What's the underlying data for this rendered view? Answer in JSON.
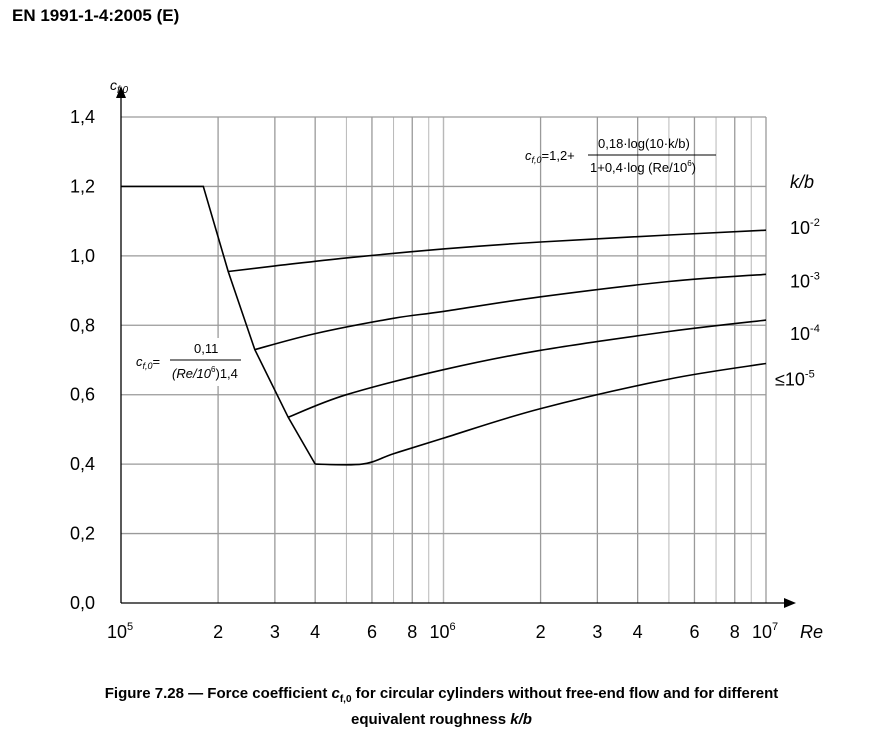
{
  "header": {
    "standard": "EN 1991-1-4:2005 (E)"
  },
  "caption": {
    "prefix": "Figure 7.28 — Force coefficient ",
    "symbol": "c",
    "symbol_sub": "f,0",
    "middle": " for circular cylinders without free-end flow and for different",
    "line2_prefix": "equivalent roughness ",
    "line2_italic": "k/b"
  },
  "formulas": {
    "upper": {
      "lhs": "c",
      "lhs_sub": "f,0",
      "eq": "=1,2+",
      "numerator": "0,18·log(10·k/b)",
      "denominator": "1+0,4·log (Re/10",
      "den_sup": "6",
      "den_close": ")"
    },
    "lower": {
      "lhs": "c",
      "lhs_sub": "f,0",
      "eq": "=",
      "numerator": "0,11",
      "denominator": "(Re/10",
      "den_sup": "6",
      "den_exp": ")1,4"
    }
  },
  "chart_data": {
    "type": "line",
    "x_scale": "log",
    "xlim": [
      100000,
      10000000
    ],
    "ylim": [
      0,
      1.4
    ],
    "xlabel": "Re",
    "ylabel": "c",
    "ylabel_sub": "f,0",
    "grid": true,
    "y_ticks": [
      {
        "value": 0.0,
        "label": "0,0"
      },
      {
        "value": 0.2,
        "label": "0,2"
      },
      {
        "value": 0.4,
        "label": "0,4"
      },
      {
        "value": 0.6,
        "label": "0,6"
      },
      {
        "value": 0.8,
        "label": "0,8"
      },
      {
        "value": 1.0,
        "label": "1,0"
      },
      {
        "value": 1.2,
        "label": "1,2"
      },
      {
        "value": 1.4,
        "label": "1,4"
      }
    ],
    "x_ticks": [
      {
        "value": 100000,
        "base": "10",
        "sup": "5"
      },
      {
        "value": 200000,
        "base": "2"
      },
      {
        "value": 300000,
        "base": "3"
      },
      {
        "value": 400000,
        "base": "4"
      },
      {
        "value": 600000,
        "base": "6"
      },
      {
        "value": 800000,
        "base": "8"
      },
      {
        "value": 1000000,
        "base": "10",
        "sup": "6"
      },
      {
        "value": 2000000,
        "base": "2"
      },
      {
        "value": 3000000,
        "base": "3"
      },
      {
        "value": 4000000,
        "base": "4"
      },
      {
        "value": 6000000,
        "base": "6"
      },
      {
        "value": 8000000,
        "base": "8"
      },
      {
        "value": 10000000,
        "base": "10",
        "sup": "7"
      }
    ],
    "legend_title": "k/b",
    "series": [
      {
        "name": "10-2",
        "label_base": "10",
        "label_sup": "-2",
        "points": [
          [
            215000,
            0.955
          ],
          [
            300000,
            0.971
          ],
          [
            500000,
            0.994
          ],
          [
            1000000,
            1.02
          ],
          [
            2000000,
            1.04
          ],
          [
            5000000,
            1.06
          ],
          [
            10000000,
            1.074
          ]
        ]
      },
      {
        "name": "10-3",
        "label_base": "10",
        "label_sup": "-3",
        "points": [
          [
            260000,
            0.73
          ],
          [
            400000,
            0.776
          ],
          [
            700000,
            0.82
          ],
          [
            1000000,
            0.84
          ],
          [
            2000000,
            0.882
          ],
          [
            5000000,
            0.926
          ],
          [
            10000000,
            0.947
          ]
        ]
      },
      {
        "name": "10-4",
        "label_base": "10",
        "label_sup": "-4",
        "points": [
          [
            330000,
            0.535
          ],
          [
            500000,
            0.6
          ],
          [
            1000000,
            0.672
          ],
          [
            2000000,
            0.728
          ],
          [
            5000000,
            0.782
          ],
          [
            10000000,
            0.815
          ]
        ]
      },
      {
        "name": "≤10-5",
        "label_prefix": "≤",
        "label_base": "10",
        "label_sup": "-5",
        "points": [
          [
            400000,
            0.4
          ],
          [
            560000,
            0.4
          ],
          [
            700000,
            0.43
          ],
          [
            1000000,
            0.475
          ],
          [
            2000000,
            0.56
          ],
          [
            5000000,
            0.645
          ],
          [
            10000000,
            0.69
          ]
        ]
      },
      {
        "name": "envelope",
        "points": [
          [
            100000,
            1.2
          ],
          [
            180000,
            1.2
          ],
          [
            215000,
            0.955
          ],
          [
            260000,
            0.73
          ],
          [
            330000,
            0.535
          ],
          [
            400000,
            0.4
          ]
        ]
      }
    ]
  }
}
